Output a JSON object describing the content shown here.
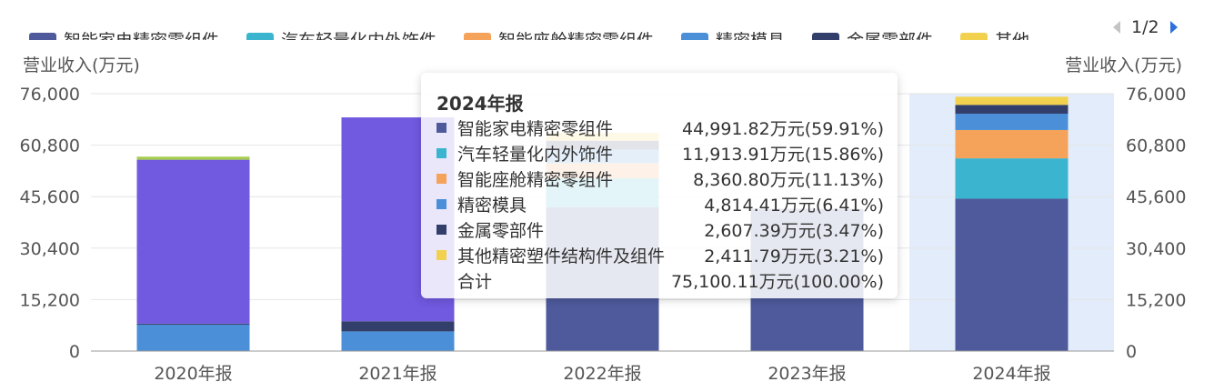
{
  "chart_data": {
    "type": "bar",
    "stacked": true,
    "categories": [
      "2020年报",
      "2021年报",
      "2022年报",
      "2023年报",
      "2024年报"
    ],
    "y_axis_left_label": "营业收入(万元)",
    "y_axis_right_label": "营业收入(万元)",
    "ylim": [
      0,
      76000
    ],
    "yticks": [
      "0",
      "15,200",
      "30,400",
      "45,600",
      "60,800",
      "76,000"
    ],
    "grid": true,
    "highlighted_category": "2024年报",
    "legend_page": "1/2",
    "series": [
      {
        "name": "智能家电精密零组件",
        "legend_label": "智能家电精密零组件",
        "color": "#4e5a9c",
        "values": [
          0,
          0,
          42500,
          42000,
          44991.82
        ]
      },
      {
        "name": "汽车轻量化内外饰件",
        "legend_label": "汽车轻量化内外饰件",
        "color": "#3bb5cf",
        "values": [
          0,
          0,
          8500,
          0,
          11913.91
        ]
      },
      {
        "name": "智能座舱精密零组件",
        "legend_label": "智能座舱精密零组件",
        "color": "#f5a25a",
        "values": [
          0,
          0,
          4500,
          0,
          8360.8
        ]
      },
      {
        "name": "精密模具",
        "legend_label": "精密模具",
        "color": "#4a8fd8",
        "values": [
          7800,
          5800,
          4000,
          0,
          4814.41
        ]
      },
      {
        "name": "金属零部件",
        "legend_label": "金属零部件",
        "color": "#333f6b",
        "values": [
          300,
          3000,
          2600,
          0,
          2607.39
        ]
      },
      {
        "name": "其他精密塑件结构件及组件",
        "legend_label": "其他",
        "color": "#f2d14e",
        "values": [
          0,
          0,
          2300,
          0,
          2411.79
        ]
      },
      {
        "name": "",
        "color": "#7159e0",
        "values": [
          48400,
          60200,
          0,
          0,
          0
        ]
      },
      {
        "name": "",
        "color": "#a5cd4d",
        "values": [
          900,
          0,
          0,
          0,
          0
        ]
      }
    ]
  },
  "tooltip": {
    "title": "2024年报",
    "rows": [
      {
        "name": "智能家电精密零组件",
        "value": "44,991.82万元(59.91%)",
        "color": "#4e5a9c"
      },
      {
        "name": "汽车轻量化内外饰件",
        "value": "11,913.91万元(15.86%)",
        "color": "#3bb5cf"
      },
      {
        "name": "智能座舱精密零组件",
        "value": "8,360.80万元(11.13%)",
        "color": "#f5a25a"
      },
      {
        "name": "精密模具",
        "value": "4,814.41万元(6.41%)",
        "color": "#4a8fd8"
      },
      {
        "name": "金属零部件",
        "value": "2,607.39万元(3.47%)",
        "color": "#333f6b"
      },
      {
        "name": "其他精密塑件结构件及组件",
        "value": "2,411.79万元(3.21%)",
        "color": "#f2d14e"
      },
      {
        "name": "合计",
        "value": "75,100.11万元(100.00%)",
        "color": ""
      }
    ]
  }
}
